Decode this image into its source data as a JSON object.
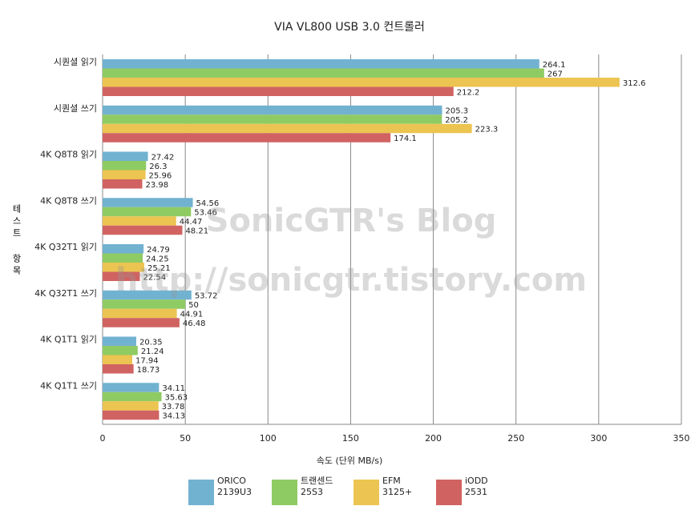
{
  "chart_data": {
    "type": "hbar",
    "title": "VIA VL800 USB 3.0 컨트롤러",
    "x_label": "속도 (단위 MB/s)",
    "y_label": "테스트 항목",
    "watermark": [
      "SonicGTR's Blog",
      "http://sonicgtr.tistory.com"
    ],
    "categories": [
      "시퀀셜 읽기",
      "시퀀셜 쓰기",
      "4K Q8T8 읽기",
      "4K Q8T8 쓰기",
      "4K Q32T1 읽기",
      "4K Q32T1 쓰기",
      "4K Q1T1 읽기",
      "4K Q1T1 쓰기"
    ],
    "series": [
      {
        "name": "ORICO\n2139U3",
        "color": "#72b2d1",
        "values": [
          264.1,
          205.3,
          27.42,
          54.56,
          24.79,
          53.72,
          20.35,
          34.11
        ]
      },
      {
        "name": "트랜센드\n25S3",
        "color": "#8fcb63",
        "values": [
          267,
          205.2,
          26.3,
          53.46,
          24.25,
          50,
          21.24,
          35.63
        ]
      },
      {
        "name": "EFM\n3125+",
        "color": "#ecc451",
        "values": [
          312.6,
          223.3,
          25.96,
          44.47,
          25.21,
          44.91,
          17.94,
          33.78
        ]
      },
      {
        "name": "iODD\n2531",
        "color": "#d06362",
        "values": [
          212.2,
          174.1,
          23.98,
          48.21,
          22.54,
          46.48,
          18.73,
          34.13
        ]
      }
    ],
    "xlim": [
      0,
      350
    ],
    "xticks": [
      0,
      50,
      100,
      150,
      200,
      250,
      300,
      350
    ],
    "grid": true
  }
}
